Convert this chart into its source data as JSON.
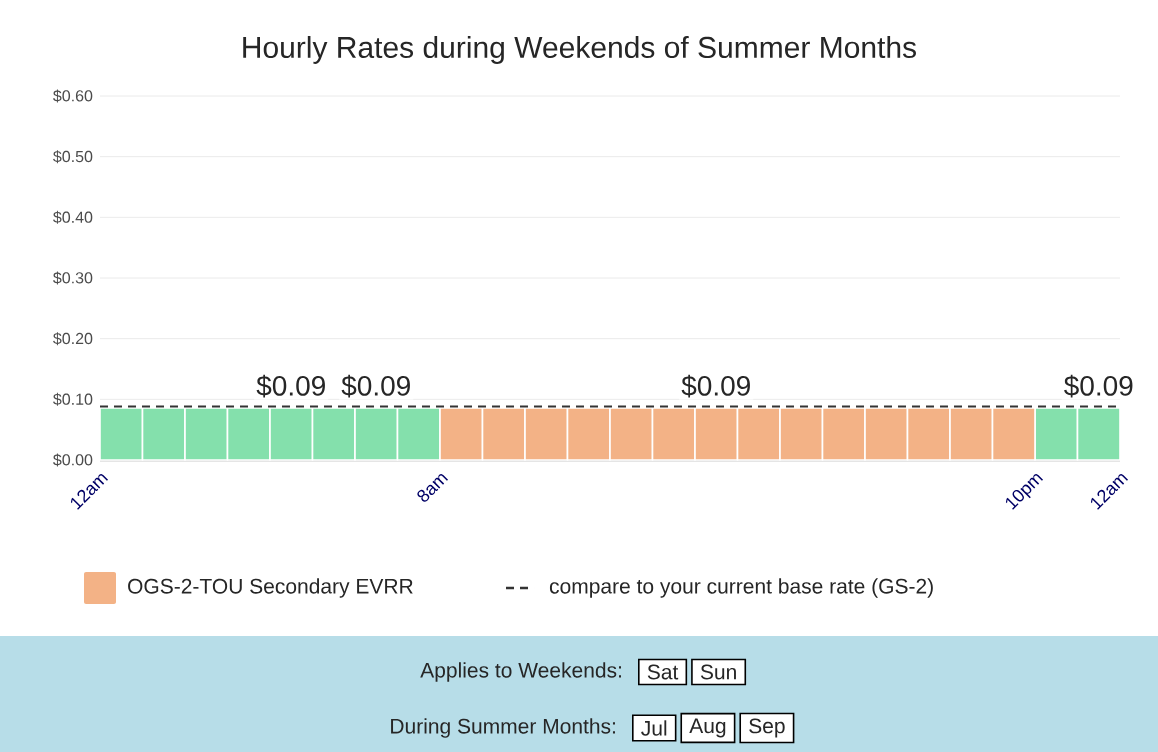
{
  "chart_data": {
    "type": "bar",
    "title": "Hourly Rates during Weekends of Summer Months",
    "categories": [
      "12am",
      null,
      null,
      null,
      null,
      null,
      null,
      null,
      "8am",
      null,
      null,
      null,
      null,
      null,
      null,
      null,
      null,
      null,
      null,
      null,
      null,
      null,
      "10pm",
      null,
      "12am"
    ],
    "series": [
      {
        "color": "#84e0ac",
        "values": [
          0.086,
          0.086,
          0.086,
          0.086,
          0.086,
          0.086,
          0.086,
          0.086,
          null,
          null,
          null,
          null,
          null,
          null,
          null,
          null,
          null,
          null,
          null,
          null,
          null,
          null,
          0.086,
          0.086,
          null
        ],
        "value_labels": [
          null,
          null,
          null,
          null,
          "$0.09",
          null,
          "$0.09",
          null,
          null,
          null,
          null,
          null,
          null,
          null,
          null,
          null,
          null,
          null,
          null,
          null,
          null,
          null,
          null,
          "$0.09",
          null
        ]
      },
      {
        "name": "OGS-2-TOU Secondary EVRR",
        "color": "#f3b286",
        "values": [
          null,
          null,
          null,
          null,
          null,
          null,
          null,
          null,
          0.086,
          0.086,
          0.086,
          0.086,
          0.086,
          0.086,
          0.086,
          0.086,
          0.086,
          0.086,
          0.086,
          0.086,
          0.086,
          0.086,
          null,
          null,
          null
        ],
        "value_labels": [
          null,
          null,
          null,
          null,
          null,
          null,
          null,
          null,
          null,
          null,
          null,
          null,
          null,
          null,
          "$0.09",
          null,
          null,
          null,
          null,
          null,
          null,
          null,
          null,
          null,
          null
        ]
      }
    ],
    "ylim": [
      0,
      0.6
    ],
    "yticks": [
      {
        "value": 0,
        "label": "$0.00"
      },
      {
        "value": 0.1,
        "label": "$0.10"
      },
      {
        "value": 0.2,
        "label": "$0.20"
      },
      {
        "value": 0.3,
        "label": "$0.30"
      },
      {
        "value": 0.4,
        "label": "$0.40"
      },
      {
        "value": 0.5,
        "label": "$0.50"
      },
      {
        "value": 0.6,
        "label": "$0.60"
      }
    ],
    "grid": "y",
    "legend": "bottom",
    "ref_lines": [
      {
        "axis": "y",
        "value": 0.088,
        "label": "compare to your current base rate (GS-2)",
        "line_style": "dashed",
        "color": "#333333"
      }
    ],
    "annotations": [
      "Applies to Weekends:",
      "Sat",
      "Sun",
      "During Summer Months:",
      "Jul",
      "Aug",
      "Sep"
    ]
  }
}
